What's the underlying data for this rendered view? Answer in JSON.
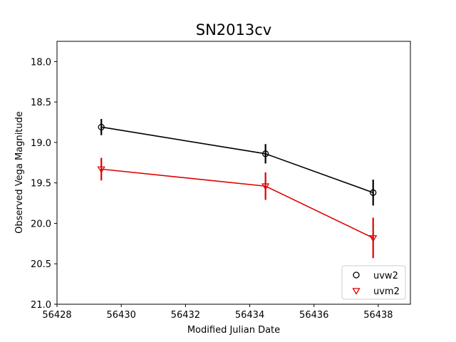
{
  "chart_data": {
    "type": "line",
    "title": "SN2013cv",
    "xlabel": "Modified Julian Date",
    "ylabel": "Observed Vega Magnitude",
    "xlim": [
      56428,
      56439
    ],
    "ylim": [
      21.0,
      17.75
    ],
    "y_inverted": true,
    "xticks": [
      56428,
      56430,
      56432,
      56434,
      56436,
      56438
    ],
    "yticks": [
      18.0,
      18.5,
      19.0,
      19.5,
      20.0,
      20.5,
      21.0
    ],
    "ytick_labels": [
      "18.0",
      "18.5",
      "19.0",
      "19.5",
      "20.0",
      "20.5",
      "21.0"
    ],
    "grid": false,
    "legend_position": "lower-right",
    "series": [
      {
        "name": "uvw2",
        "color": "#000000",
        "marker": "circle",
        "x": [
          56429.38,
          56434.49,
          56437.84
        ],
        "y": [
          18.81,
          19.14,
          19.62
        ],
        "yerr": [
          0.1,
          0.12,
          0.16
        ]
      },
      {
        "name": "uvm2",
        "color": "#e00000",
        "marker": "triangle-down",
        "x": [
          56429.38,
          56434.49,
          56437.84
        ],
        "y": [
          19.33,
          19.54,
          20.18
        ],
        "yerr": [
          0.14,
          0.17,
          0.25
        ]
      }
    ]
  }
}
